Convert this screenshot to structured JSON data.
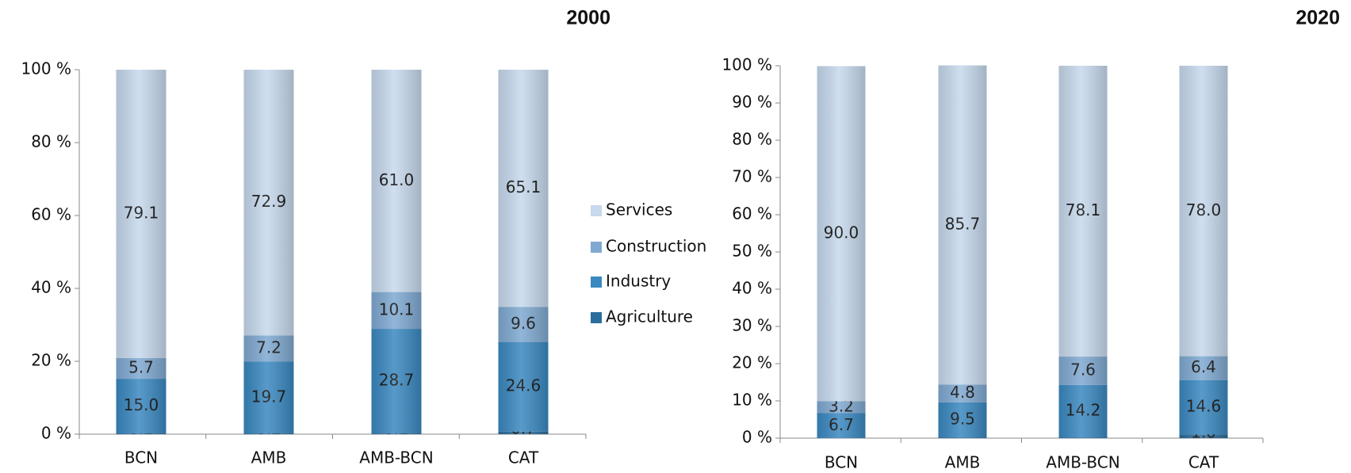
{
  "chart_data": [
    {
      "type": "stacked_bar",
      "title": "2000",
      "categories": [
        "BCN",
        "AMB",
        "AMB-BCN",
        "CAT"
      ],
      "series": [
        {
          "name": "Agriculture",
          "color": "#2b6d9c",
          "values": [
            0.2,
            0.2,
            0.2,
            0.7
          ],
          "value_labels": [
            "0.2",
            "0.2",
            "0.2",
            "0.7"
          ]
        },
        {
          "name": "Industry",
          "color": "#3a88c0",
          "values": [
            15.0,
            19.7,
            28.7,
            24.6
          ],
          "value_labels": [
            "15.0",
            "19.7",
            "28.7",
            "24.6"
          ]
        },
        {
          "name": "Construction",
          "color": "#7fa9d1",
          "values": [
            5.7,
            7.2,
            10.1,
            9.6
          ],
          "value_labels": [
            "5.7",
            "7.2",
            "10.1",
            "9.6"
          ]
        },
        {
          "name": "Services",
          "color": "#c6d9ed",
          "values": [
            79.1,
            72.9,
            61.0,
            65.1
          ],
          "value_labels": [
            "79.1",
            "72.9",
            "61.0",
            "65.1"
          ]
        }
      ],
      "ylim": [
        0,
        100
      ],
      "yticks": [
        {
          "value": 0,
          "label": "0 %"
        },
        {
          "value": 20,
          "label": "20 %"
        },
        {
          "value": 40,
          "label": "40 %"
        },
        {
          "value": 60,
          "label": "60 %"
        },
        {
          "value": 80,
          "label": "80 %"
        },
        {
          "value": 100,
          "label": "100 %"
        }
      ],
      "legend": "right"
    },
    {
      "type": "stacked_bar",
      "title": "2020",
      "categories": [
        "BCN",
        "AMB",
        "AMB-BCN",
        "CAT"
      ],
      "series": [
        {
          "name": "Agriculture",
          "color": "#2b6d9c",
          "values": [
            0.0,
            0.1,
            0.1,
            1.0
          ],
          "value_labels": [
            "0.0",
            "0.1",
            "0.1",
            "1.0"
          ]
        },
        {
          "name": "Industry",
          "color": "#3a88c0",
          "values": [
            6.7,
            9.5,
            14.2,
            14.6
          ],
          "value_labels": [
            "6.7",
            "9.5",
            "14.2",
            "14.6"
          ]
        },
        {
          "name": "Construction",
          "color": "#7fa9d1",
          "values": [
            3.2,
            4.8,
            7.6,
            6.4
          ],
          "value_labels": [
            "3.2",
            "4.8",
            "7.6",
            "6.4"
          ]
        },
        {
          "name": "Services",
          "color": "#c6d9ed",
          "values": [
            90.0,
            85.7,
            78.1,
            78.0
          ],
          "value_labels": [
            "90.0",
            "85.7",
            "78.1",
            "78.0"
          ]
        }
      ],
      "ylim": [
        0,
        100
      ],
      "yticks": [
        {
          "value": 0,
          "label": "0 %"
        },
        {
          "value": 10,
          "label": "10 %"
        },
        {
          "value": 20,
          "label": "20 %"
        },
        {
          "value": 30,
          "label": "30 %"
        },
        {
          "value": 40,
          "label": "40 %"
        },
        {
          "value": 50,
          "label": "50 %"
        },
        {
          "value": 60,
          "label": "60 %"
        },
        {
          "value": 70,
          "label": "70 %"
        },
        {
          "value": 80,
          "label": "80 %"
        },
        {
          "value": 90,
          "label": "90 %"
        },
        {
          "value": 100,
          "label": "100 %"
        }
      ],
      "legend": "none"
    }
  ]
}
